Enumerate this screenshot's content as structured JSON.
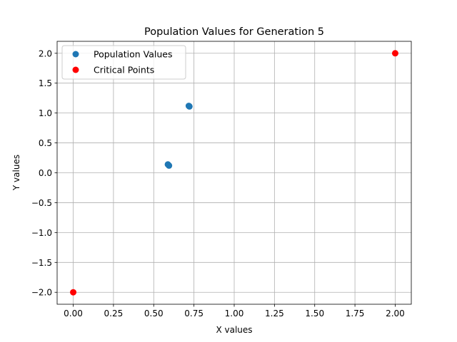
{
  "chart_data": {
    "type": "scatter",
    "title": "Population Values for Generation 5",
    "xlabel": "X values",
    "ylabel": "Y values",
    "xlim": [
      -0.1,
      2.1
    ],
    "ylim": [
      -2.2,
      2.2
    ],
    "xticks": [
      0.0,
      0.25,
      0.5,
      0.75,
      1.0,
      1.25,
      1.5,
      1.75,
      2.0
    ],
    "xtick_labels": [
      "0.00",
      "0.25",
      "0.50",
      "0.75",
      "1.00",
      "1.25",
      "1.50",
      "1.75",
      "2.00"
    ],
    "yticks": [
      -2.0,
      -1.5,
      -1.0,
      -0.5,
      0.0,
      0.5,
      1.0,
      1.5,
      2.0
    ],
    "ytick_labels": [
      "−2.0",
      "−1.5",
      "−1.0",
      "−0.5",
      "0.0",
      "0.5",
      "1.0",
      "1.5",
      "2.0"
    ],
    "grid": true,
    "legend_position": "top-left",
    "series": [
      {
        "name": "Population Values",
        "color": "#1f77b4",
        "points": [
          {
            "x": 0.588,
            "y": 0.14
          },
          {
            "x": 0.595,
            "y": 0.12
          },
          {
            "x": 0.718,
            "y": 1.12
          },
          {
            "x": 0.722,
            "y": 1.11
          }
        ]
      },
      {
        "name": "Critical Points",
        "color": "#ff0000",
        "points": [
          {
            "x": 0.0,
            "y": -2.0
          },
          {
            "x": 2.0,
            "y": 2.0
          }
        ]
      }
    ]
  }
}
